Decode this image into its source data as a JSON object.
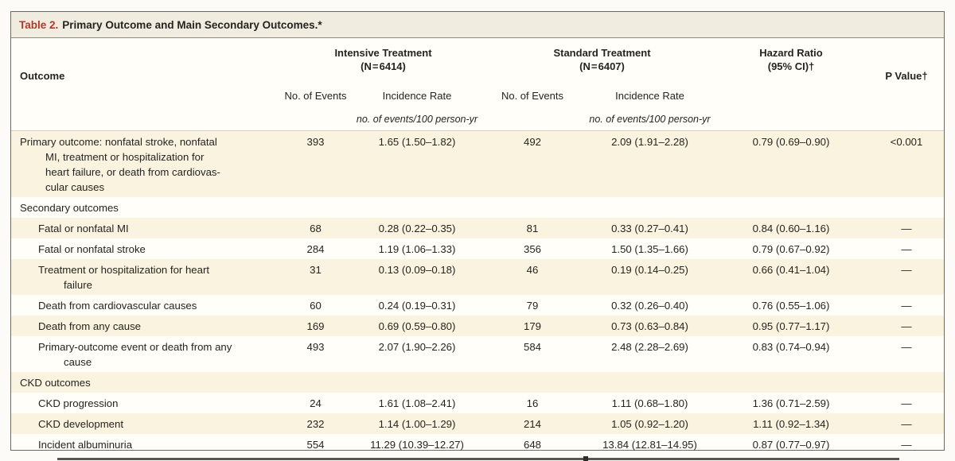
{
  "title": {
    "label": "Table 2.",
    "text": "Primary Outcome and Main Secondary Outcomes.*"
  },
  "header": {
    "outcome": "Outcome",
    "groups": [
      {
        "line1": "Intensive Treatment",
        "line2": "(N = 6414)"
      },
      {
        "line1": "Standard Treatment",
        "line2": "(N = 6407)"
      },
      {
        "line1": "Hazard Ratio",
        "line2": "(95% CI)†"
      }
    ],
    "p_value": "P Value†",
    "subheaders": {
      "events": "No. of Events",
      "rate": "Incidence Rate"
    },
    "units": "no. of events/100 person-yr"
  },
  "rows": [
    {
      "type": "data",
      "indent": 0,
      "label": "Primary outcome: nonfatal stroke, nonfatal\nMI, treatment or hospitalization for\nheart failure, or death from cardiovas-\ncular causes",
      "events_intensive": "393",
      "rate_intensive": "1.65 (1.50–1.82)",
      "events_standard": "492",
      "rate_standard": "2.09 (1.91–2.28)",
      "hazard_ratio": "0.79 (0.69–0.90)",
      "p_value": "<0.001"
    },
    {
      "type": "section",
      "label": "Secondary outcomes"
    },
    {
      "type": "data",
      "indent": 1,
      "label": "Fatal or nonfatal MI",
      "events_intensive": "68",
      "rate_intensive": "0.28 (0.22–0.35)",
      "events_standard": "81",
      "rate_standard": "0.33 (0.27–0.41)",
      "hazard_ratio": "0.84 (0.60–1.16)",
      "p_value": "—"
    },
    {
      "type": "data",
      "indent": 1,
      "label": "Fatal or nonfatal stroke",
      "events_intensive": "284",
      "rate_intensive": "1.19 (1.06–1.33)",
      "events_standard": "356",
      "rate_standard": "1.50 (1.35–1.66)",
      "hazard_ratio": "0.79 (0.67–0.92)",
      "p_value": "—"
    },
    {
      "type": "data",
      "indent": 1,
      "label": "Treatment or hospitalization for heart\nfailure",
      "events_intensive": "31",
      "rate_intensive": "0.13 (0.09–0.18)",
      "events_standard": "46",
      "rate_standard": "0.19 (0.14–0.25)",
      "hazard_ratio": "0.66 (0.41–1.04)",
      "p_value": "—"
    },
    {
      "type": "data",
      "indent": 1,
      "label": "Death from cardiovascular causes",
      "events_intensive": "60",
      "rate_intensive": "0.24 (0.19–0.31)",
      "events_standard": "79",
      "rate_standard": "0.32 (0.26–0.40)",
      "hazard_ratio": "0.76 (0.55–1.06)",
      "p_value": "—"
    },
    {
      "type": "data",
      "indent": 1,
      "label": "Death from any cause",
      "events_intensive": "169",
      "rate_intensive": "0.69 (0.59–0.80)",
      "events_standard": "179",
      "rate_standard": "0.73 (0.63–0.84)",
      "hazard_ratio": "0.95 (0.77–1.17)",
      "p_value": "—"
    },
    {
      "type": "data",
      "indent": 1,
      "label": "Primary-outcome event or death from any\ncause",
      "events_intensive": "493",
      "rate_intensive": "2.07 (1.90–2.26)",
      "events_standard": "584",
      "rate_standard": "2.48 (2.28–2.69)",
      "hazard_ratio": "0.83 (0.74–0.94)",
      "p_value": "—"
    },
    {
      "type": "section",
      "label": "CKD outcomes"
    },
    {
      "type": "data",
      "indent": 1,
      "label": "CKD progression",
      "events_intensive": "24",
      "rate_intensive": "1.61 (1.08–2.41)",
      "events_standard": "16",
      "rate_standard": "1.11 (0.68–1.80)",
      "hazard_ratio": "1.36 (0.71–2.59)",
      "p_value": "—"
    },
    {
      "type": "data",
      "indent": 1,
      "label": "CKD development",
      "events_intensive": "232",
      "rate_intensive": "1.14 (1.00–1.29)",
      "events_standard": "214",
      "rate_standard": "1.05 (0.92–1.20)",
      "hazard_ratio": "1.11 (0.92–1.34)",
      "p_value": "—"
    },
    {
      "type": "data",
      "indent": 1,
      "label": "Incident albuminuria",
      "events_intensive": "554",
      "rate_intensive": "11.29 (10.39–12.27)",
      "events_standard": "648",
      "rate_standard": "13.84 (12.81–14.95)",
      "hazard_ratio": "0.87 (0.77–0.97)",
      "p_value": "—"
    }
  ]
}
